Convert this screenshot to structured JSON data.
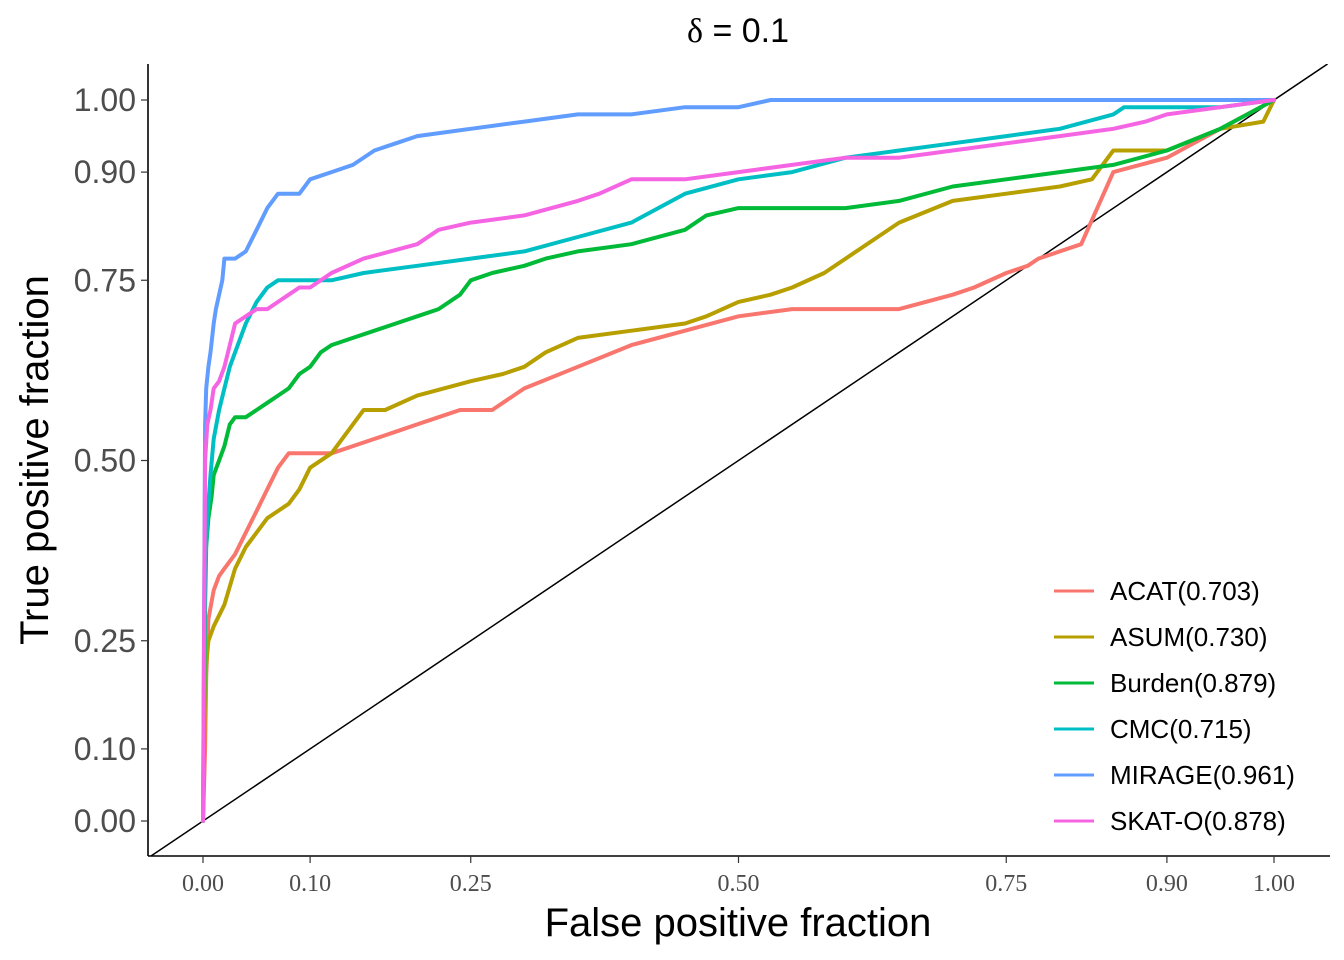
{
  "chart_data": {
    "type": "line",
    "title_symbol": "δ",
    "title_rest": " = 0.1",
    "xlabel": "False positive fraction",
    "ylabel": "True positive fraction",
    "xlim": [
      0,
      1
    ],
    "ylim": [
      0,
      1
    ],
    "x_ticks": [
      0.0,
      0.1,
      0.25,
      0.5,
      0.75,
      0.9,
      1.0
    ],
    "x_tick_labels": [
      "0.00",
      "0.10",
      "0.25",
      "0.50",
      "0.75",
      "0.90",
      "1.00"
    ],
    "y_ticks": [
      0.0,
      0.1,
      0.25,
      0.5,
      0.75,
      0.9,
      1.0
    ],
    "y_tick_labels": [
      "0.00",
      "0.10",
      "0.25",
      "0.50",
      "0.75",
      "0.90",
      "1.00"
    ],
    "grid": false,
    "legend_position": "bottom-right",
    "reference_line": {
      "x": [
        -0.05,
        1.05
      ],
      "y": [
        -0.05,
        1.05
      ]
    },
    "series": [
      {
        "name": "ACAT(0.703)",
        "color": "#F8766D",
        "x": [
          0,
          0.002,
          0.003,
          0.005,
          0.01,
          0.015,
          0.02,
          0.03,
          0.04,
          0.05,
          0.06,
          0.07,
          0.08,
          0.09,
          0.1,
          0.12,
          0.14,
          0.16,
          0.18,
          0.2,
          0.22,
          0.24,
          0.27,
          0.3,
          0.35,
          0.4,
          0.45,
          0.5,
          0.55,
          0.6,
          0.65,
          0.7,
          0.72,
          0.75,
          0.77,
          0.78,
          0.8,
          0.82,
          0.85,
          0.9,
          0.95,
          1.0
        ],
        "y": [
          0,
          0.1,
          0.2,
          0.28,
          0.32,
          0.34,
          0.35,
          0.37,
          0.4,
          0.43,
          0.46,
          0.49,
          0.51,
          0.51,
          0.51,
          0.51,
          0.52,
          0.53,
          0.54,
          0.55,
          0.56,
          0.57,
          0.57,
          0.6,
          0.63,
          0.66,
          0.68,
          0.7,
          0.71,
          0.71,
          0.71,
          0.73,
          0.74,
          0.76,
          0.77,
          0.78,
          0.79,
          0.8,
          0.9,
          0.92,
          0.96,
          1.0
        ]
      },
      {
        "name": "ASUM(0.730)",
        "color": "#B79F00",
        "x": [
          0,
          0.002,
          0.005,
          0.01,
          0.02,
          0.03,
          0.04,
          0.05,
          0.06,
          0.07,
          0.08,
          0.09,
          0.1,
          0.12,
          0.14,
          0.15,
          0.17,
          0.2,
          0.25,
          0.28,
          0.3,
          0.32,
          0.35,
          0.4,
          0.45,
          0.47,
          0.5,
          0.53,
          0.55,
          0.58,
          0.6,
          0.63,
          0.65,
          0.7,
          0.75,
          0.8,
          0.83,
          0.85,
          0.9,
          0.95,
          0.99,
          1.0
        ],
        "y": [
          0,
          0.2,
          0.25,
          0.27,
          0.3,
          0.35,
          0.38,
          0.4,
          0.42,
          0.43,
          0.44,
          0.46,
          0.49,
          0.51,
          0.55,
          0.57,
          0.57,
          0.59,
          0.61,
          0.62,
          0.63,
          0.65,
          0.67,
          0.68,
          0.69,
          0.7,
          0.72,
          0.73,
          0.74,
          0.76,
          0.78,
          0.81,
          0.83,
          0.86,
          0.87,
          0.88,
          0.89,
          0.93,
          0.93,
          0.96,
          0.97,
          1.0
        ]
      },
      {
        "name": "Burden(0.879)",
        "color": "#00BA38",
        "x": [
          0,
          0.002,
          0.003,
          0.005,
          0.008,
          0.01,
          0.015,
          0.02,
          0.025,
          0.03,
          0.04,
          0.05,
          0.06,
          0.07,
          0.08,
          0.09,
          0.1,
          0.11,
          0.12,
          0.14,
          0.16,
          0.18,
          0.2,
          0.22,
          0.24,
          0.25,
          0.27,
          0.3,
          0.32,
          0.35,
          0.4,
          0.45,
          0.47,
          0.5,
          0.55,
          0.6,
          0.65,
          0.7,
          0.75,
          0.8,
          0.85,
          0.9,
          0.95,
          1.0
        ],
        "y": [
          0,
          0.3,
          0.38,
          0.42,
          0.45,
          0.48,
          0.5,
          0.52,
          0.55,
          0.56,
          0.56,
          0.57,
          0.58,
          0.59,
          0.6,
          0.62,
          0.63,
          0.65,
          0.66,
          0.67,
          0.68,
          0.69,
          0.7,
          0.71,
          0.73,
          0.75,
          0.76,
          0.77,
          0.78,
          0.79,
          0.8,
          0.82,
          0.84,
          0.85,
          0.85,
          0.85,
          0.86,
          0.88,
          0.89,
          0.9,
          0.91,
          0.93,
          0.96,
          1.0
        ]
      },
      {
        "name": "CMC(0.715)",
        "color": "#00BFC4",
        "x": [
          0,
          0.002,
          0.004,
          0.007,
          0.01,
          0.015,
          0.02,
          0.025,
          0.03,
          0.04,
          0.05,
          0.06,
          0.07,
          0.08,
          0.09,
          0.1,
          0.12,
          0.15,
          0.2,
          0.25,
          0.3,
          0.35,
          0.4,
          0.45,
          0.5,
          0.55,
          0.6,
          0.65,
          0.7,
          0.75,
          0.8,
          0.85,
          0.86,
          0.9,
          0.95,
          1.0
        ],
        "y": [
          0,
          0.35,
          0.42,
          0.48,
          0.53,
          0.57,
          0.6,
          0.63,
          0.65,
          0.69,
          0.72,
          0.74,
          0.75,
          0.75,
          0.75,
          0.75,
          0.75,
          0.76,
          0.77,
          0.78,
          0.79,
          0.81,
          0.83,
          0.87,
          0.89,
          0.9,
          0.92,
          0.93,
          0.94,
          0.95,
          0.96,
          0.98,
          0.99,
          0.99,
          0.99,
          1.0
        ]
      },
      {
        "name": "MIRAGE(0.961)",
        "color": "#619CFF",
        "x": [
          0,
          0.002,
          0.003,
          0.005,
          0.007,
          0.01,
          0.012,
          0.015,
          0.018,
          0.02,
          0.025,
          0.03,
          0.04,
          0.05,
          0.06,
          0.07,
          0.08,
          0.09,
          0.1,
          0.12,
          0.14,
          0.16,
          0.18,
          0.2,
          0.25,
          0.3,
          0.35,
          0.4,
          0.45,
          0.5,
          0.53,
          0.55,
          0.6,
          0.7,
          0.8,
          0.9,
          1.0
        ],
        "y": [
          0,
          0.55,
          0.6,
          0.63,
          0.65,
          0.69,
          0.71,
          0.73,
          0.75,
          0.78,
          0.78,
          0.78,
          0.79,
          0.82,
          0.85,
          0.87,
          0.87,
          0.87,
          0.89,
          0.9,
          0.91,
          0.93,
          0.94,
          0.95,
          0.96,
          0.97,
          0.98,
          0.98,
          0.99,
          0.99,
          1.0,
          1.0,
          1.0,
          1.0,
          1.0,
          1.0,
          1.0
        ]
      },
      {
        "name": "SKAT-O(0.878)",
        "color": "#F564E3",
        "x": [
          0,
          0.002,
          0.004,
          0.007,
          0.01,
          0.015,
          0.02,
          0.025,
          0.03,
          0.04,
          0.05,
          0.06,
          0.07,
          0.08,
          0.09,
          0.1,
          0.12,
          0.15,
          0.2,
          0.22,
          0.25,
          0.3,
          0.35,
          0.37,
          0.4,
          0.45,
          0.5,
          0.55,
          0.6,
          0.65,
          0.7,
          0.75,
          0.8,
          0.85,
          0.88,
          0.9,
          0.95,
          1.0
        ],
        "y": [
          0,
          0.5,
          0.55,
          0.57,
          0.6,
          0.61,
          0.63,
          0.66,
          0.69,
          0.7,
          0.71,
          0.71,
          0.72,
          0.73,
          0.74,
          0.74,
          0.76,
          0.78,
          0.8,
          0.82,
          0.83,
          0.84,
          0.86,
          0.87,
          0.89,
          0.89,
          0.9,
          0.91,
          0.92,
          0.92,
          0.93,
          0.94,
          0.95,
          0.96,
          0.97,
          0.98,
          0.99,
          1.0
        ]
      }
    ]
  }
}
